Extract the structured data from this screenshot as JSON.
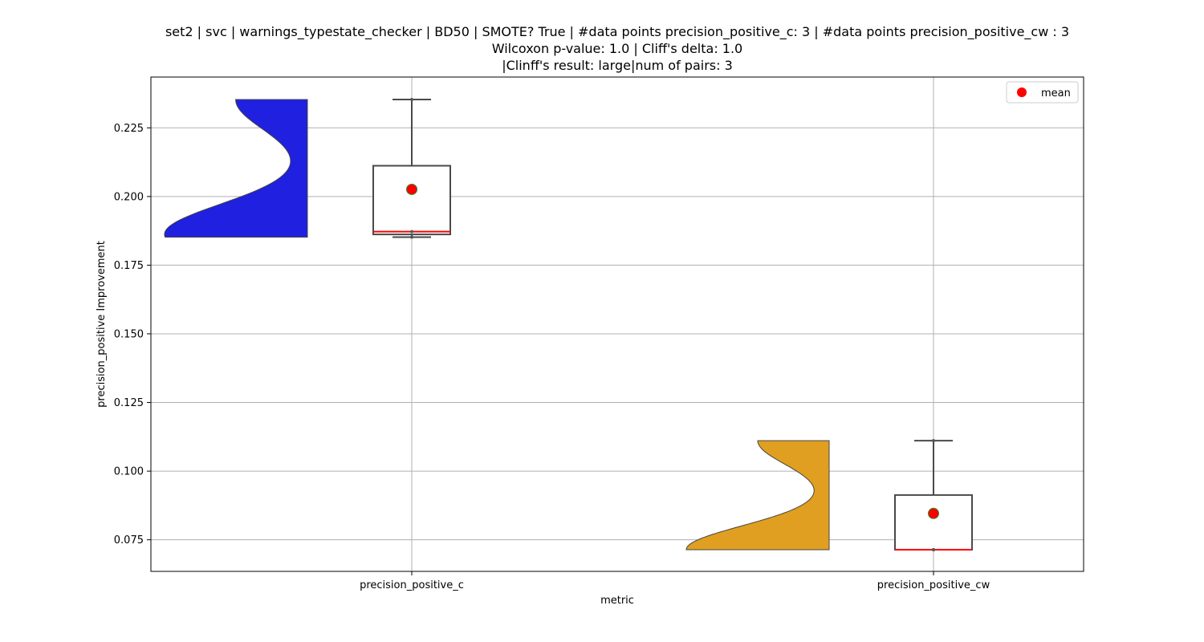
{
  "title": {
    "line1": "set2 | svc | warnings_typestate_checker | BD50 | SMOTE? True | #data points precision_positive_c: 3 | #data points precision_positive_cw : 3",
    "line2": "Wilcoxon p-value: 1.0 | Cliff's delta: 1.0",
    "line3": "|Clinff's result: large|num of pairs: 3"
  },
  "chart_data": {
    "type": "box",
    "xlabel": "metric",
    "ylabel": "precision_positive Improvement",
    "ylim": [
      0.0635,
      0.2435
    ],
    "yticks": [
      "0.075",
      "0.100",
      "0.125",
      "0.150",
      "0.175",
      "0.200",
      "0.225"
    ],
    "grid": true,
    "legend": {
      "position": "top-right",
      "entries": [
        {
          "label": "mean",
          "color": "#ff0000"
        }
      ]
    },
    "categories": [
      "precision_positive_c",
      "precision_positive_cw"
    ],
    "series": [
      {
        "category": "precision_positive_c",
        "violin_color": "#2020e0",
        "points": [
          0.1852,
          0.1872,
          0.2353
        ],
        "box": {
          "min": 0.1852,
          "q1": 0.1862,
          "median": 0.1872,
          "q3": 0.2112,
          "max": 0.2353
        },
        "mean": 0.2026
      },
      {
        "category": "precision_positive_cw",
        "violin_color": "#e09f20",
        "points": [
          0.0714,
          0.0714,
          0.1111
        ],
        "box": {
          "min": 0.0714,
          "q1": 0.0714,
          "median": 0.0714,
          "q3": 0.0913,
          "max": 0.1111
        },
        "mean": 0.0846
      }
    ],
    "colors": {
      "median": "#ff0000",
      "mean_fill": "#ff0000",
      "mean_edge": "#2e8b2e",
      "box_edge": "#4a4a4a",
      "grid": "#b0b0b0"
    }
  }
}
